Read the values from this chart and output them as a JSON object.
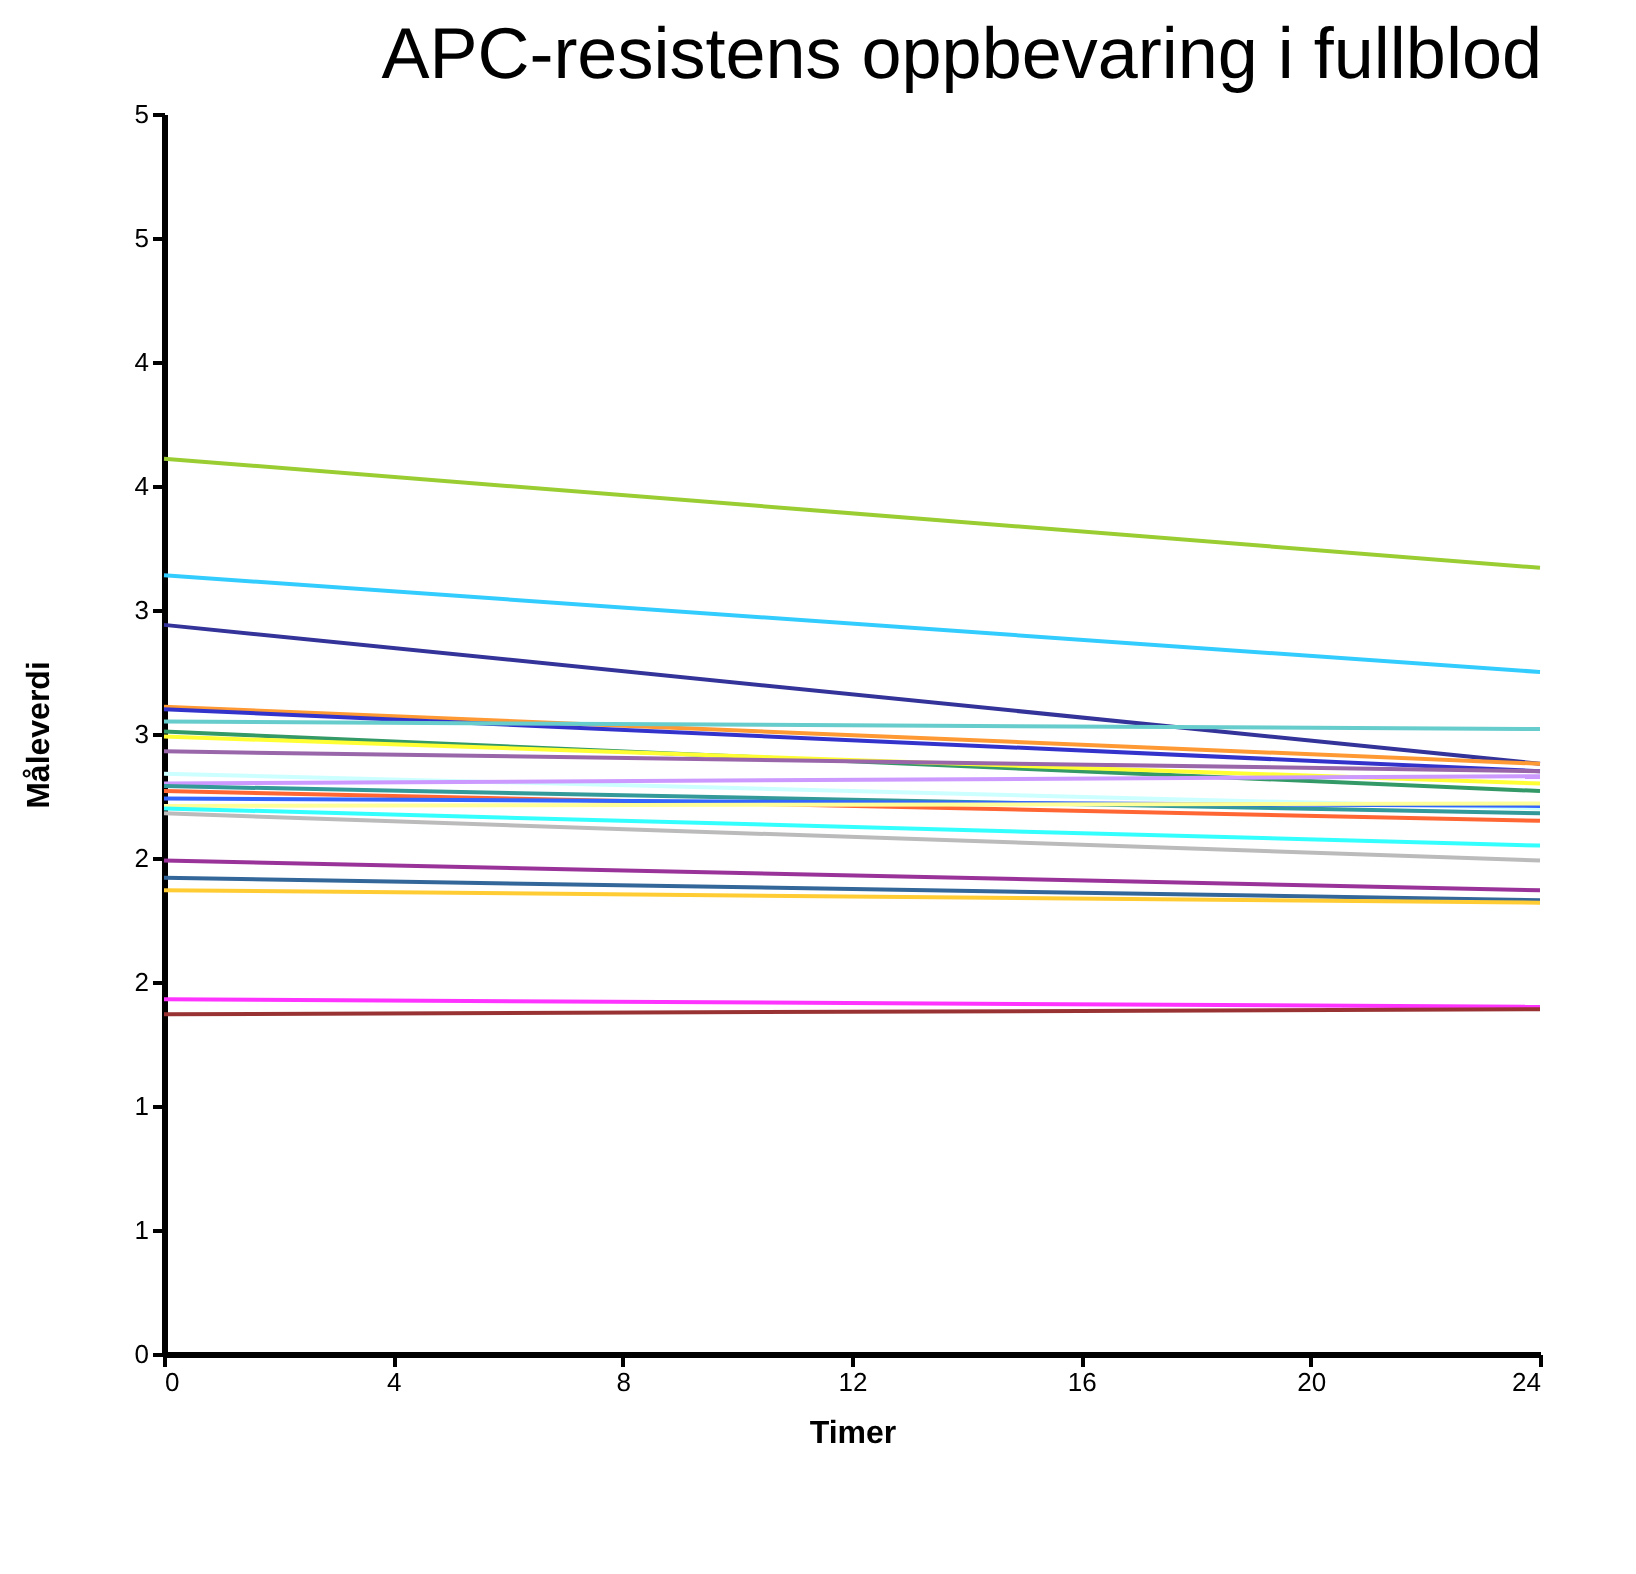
{
  "chart_data": {
    "type": "line",
    "title": "APC-resistens oppbevaring i fullblod",
    "xlabel": "Timer",
    "ylabel": "Måleverdi",
    "x": [
      0,
      24
    ],
    "xlim": [
      0,
      24
    ],
    "xticks": [
      0,
      4,
      8,
      12,
      16,
      20,
      24
    ],
    "ylim": [
      0,
      5
    ],
    "yticks": [
      0,
      {
        "value": 0.5,
        "label": "1"
      },
      1,
      {
        "value": 1.5,
        "label": "2"
      },
      2,
      {
        "value": 2.5,
        "label": "3"
      },
      3,
      {
        "value": 3.5,
        "label": "4"
      },
      4,
      {
        "value": 4.5,
        "label": "5"
      },
      5
    ],
    "grid": false,
    "legend": false,
    "marker": "none",
    "line_style": "solid",
    "series": [
      {
        "color": "#9acd32",
        "values": [
          3.61,
          3.17
        ]
      },
      {
        "color": "#33ccff",
        "values": [
          3.14,
          2.75
        ]
      },
      {
        "color": "#333399",
        "values": [
          2.94,
          2.38
        ]
      },
      {
        "color": "#ff9933",
        "values": [
          2.61,
          2.38
        ]
      },
      {
        "color": "#3333cc",
        "values": [
          2.6,
          2.35
        ]
      },
      {
        "color": "#66cccc",
        "values": [
          2.55,
          2.52
        ]
      },
      {
        "color": "#339966",
        "values": [
          2.51,
          2.27
        ]
      },
      {
        "color": "#ffff33",
        "values": [
          2.49,
          2.3
        ]
      },
      {
        "color": "#9966aa",
        "values": [
          2.43,
          2.35
        ]
      },
      {
        "color": "#ccffff",
        "values": [
          2.34,
          2.2
        ]
      },
      {
        "color": "#cc99ff",
        "values": [
          2.3,
          2.33
        ]
      },
      {
        "color": "#339999",
        "values": [
          2.29,
          2.18
        ]
      },
      {
        "color": "#ff6633",
        "values": [
          2.27,
          2.15
        ]
      },
      {
        "color": "#3366ff",
        "values": [
          2.24,
          2.21
        ]
      },
      {
        "color": "#ffff99",
        "values": [
          2.21,
          2.22
        ]
      },
      {
        "color": "#33ffff",
        "values": [
          2.2,
          2.05
        ]
      },
      {
        "color": "#bbbbbb",
        "values": [
          2.18,
          1.99
        ]
      },
      {
        "color": "#993399",
        "values": [
          1.99,
          1.87
        ]
      },
      {
        "color": "#336699",
        "values": [
          1.92,
          1.83
        ]
      },
      {
        "color": "#ffcc33",
        "values": [
          1.87,
          1.82
        ]
      },
      {
        "color": "#ff33ff",
        "values": [
          1.43,
          1.4
        ]
      },
      {
        "color": "#993333",
        "values": [
          1.37,
          1.39
        ]
      }
    ]
  }
}
